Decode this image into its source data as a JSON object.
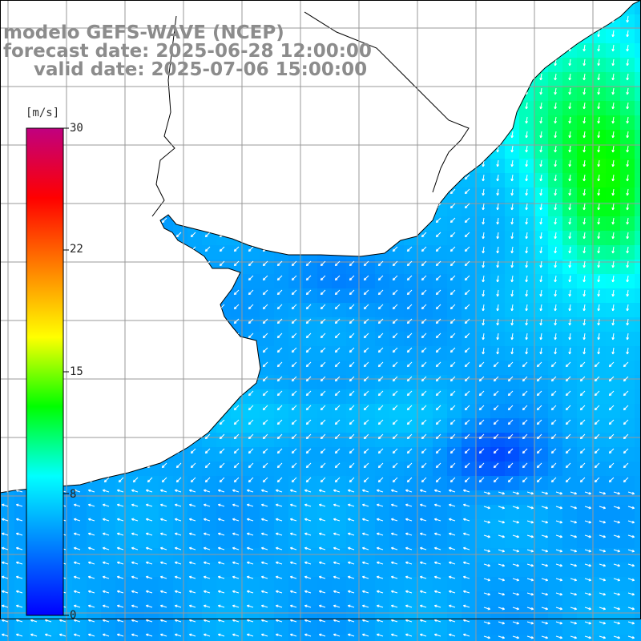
{
  "title": {
    "line1": "modelo GEFS-WAVE (NCEP)",
    "line2": "forecast date: 2025-06-28 12:00:00",
    "line3": "valid date: 2025-07-06 15:00:00"
  },
  "colorbar": {
    "unit": "[m/s]",
    "ticks": [
      "30",
      "22",
      "15",
      "8",
      "0"
    ],
    "min": 0,
    "max": 30,
    "colors": [
      "#0000ff",
      "#0080ff",
      "#00ffff",
      "#00ff00",
      "#ffff00",
      "#ff8000",
      "#ff0000",
      "#c00080"
    ]
  },
  "map": {
    "field": "wind speed",
    "sea_base_color": "#1a8cff",
    "strong_wind_color": "#00ff40",
    "weak_wind_color": "#0040ff",
    "land_color": "#ffffff",
    "grid_color": "#999999"
  }
}
